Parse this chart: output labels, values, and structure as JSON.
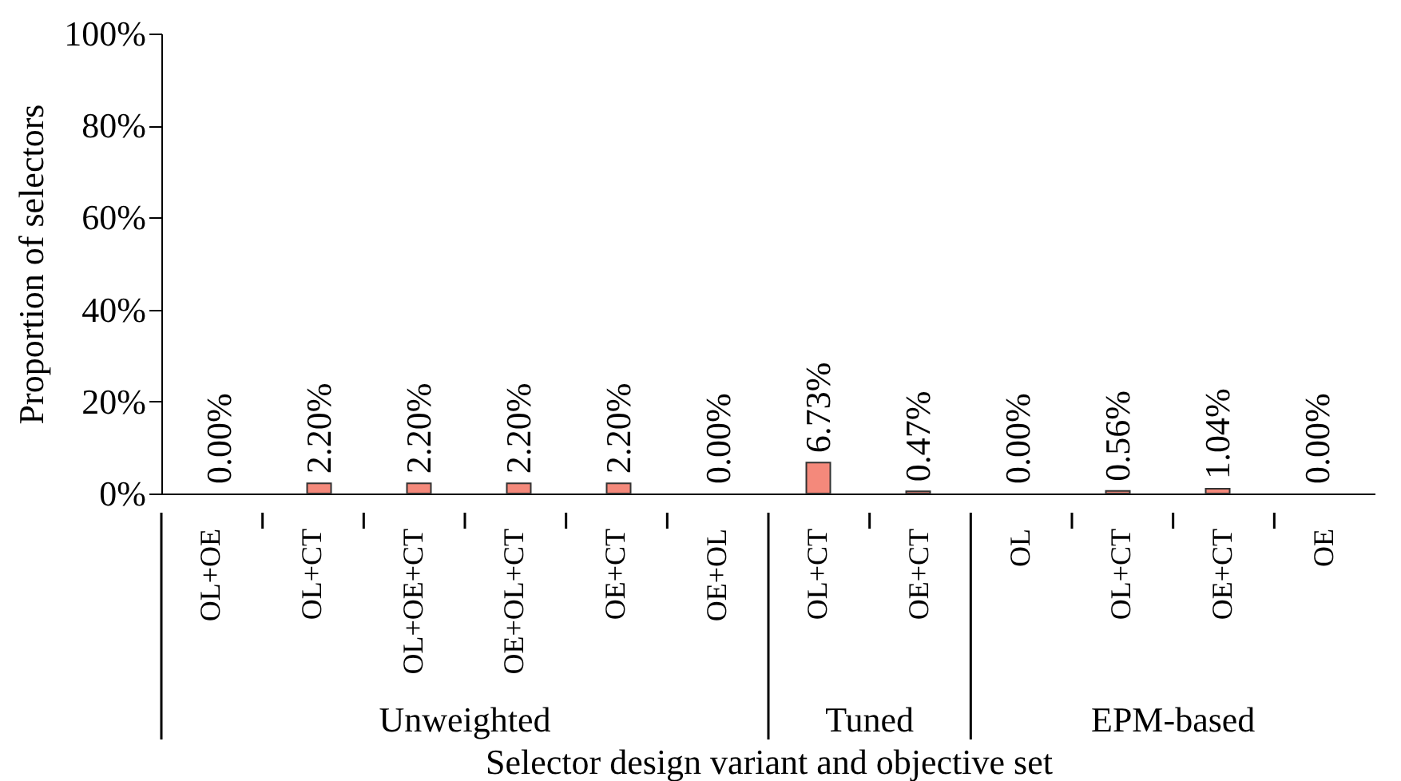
{
  "chart_data": {
    "type": "bar",
    "xlabel": "Selector design variant and objective set",
    "ylabel": "Proportion of selectors",
    "categories": [
      "OL+OE",
      "OL+CT",
      "OL+OE+CT",
      "OE+OL+CT",
      "OE+CT",
      "OE+OL",
      "OL+CT",
      "OE+CT",
      "OL",
      "OL+CT",
      "OE+CT",
      "OE"
    ],
    "values": [
      0,
      2.2,
      2.2,
      2.2,
      2.2,
      0,
      6.73,
      0.47,
      0,
      0.56,
      1.04,
      0
    ],
    "value_labels": [
      "0.00%",
      "2.20%",
      "2.20%",
      "2.20%",
      "2.20%",
      "0.00%",
      "6.73%",
      "0.47%",
      "0.00%",
      "0.56%",
      "1.04%",
      "0.00%"
    ],
    "color": "#f4897b",
    "ylim": [
      0,
      100
    ],
    "yticks": [
      {
        "value": 0,
        "label": "0%"
      },
      {
        "value": 20,
        "label": "20%"
      },
      {
        "value": 40,
        "label": "40%"
      },
      {
        "value": 60,
        "label": "60%"
      },
      {
        "value": 80,
        "label": "80%"
      },
      {
        "value": 100,
        "label": "100%"
      }
    ],
    "annotations": [
      "Unweighted",
      "Tuned",
      "EPM-based"
    ]
  }
}
